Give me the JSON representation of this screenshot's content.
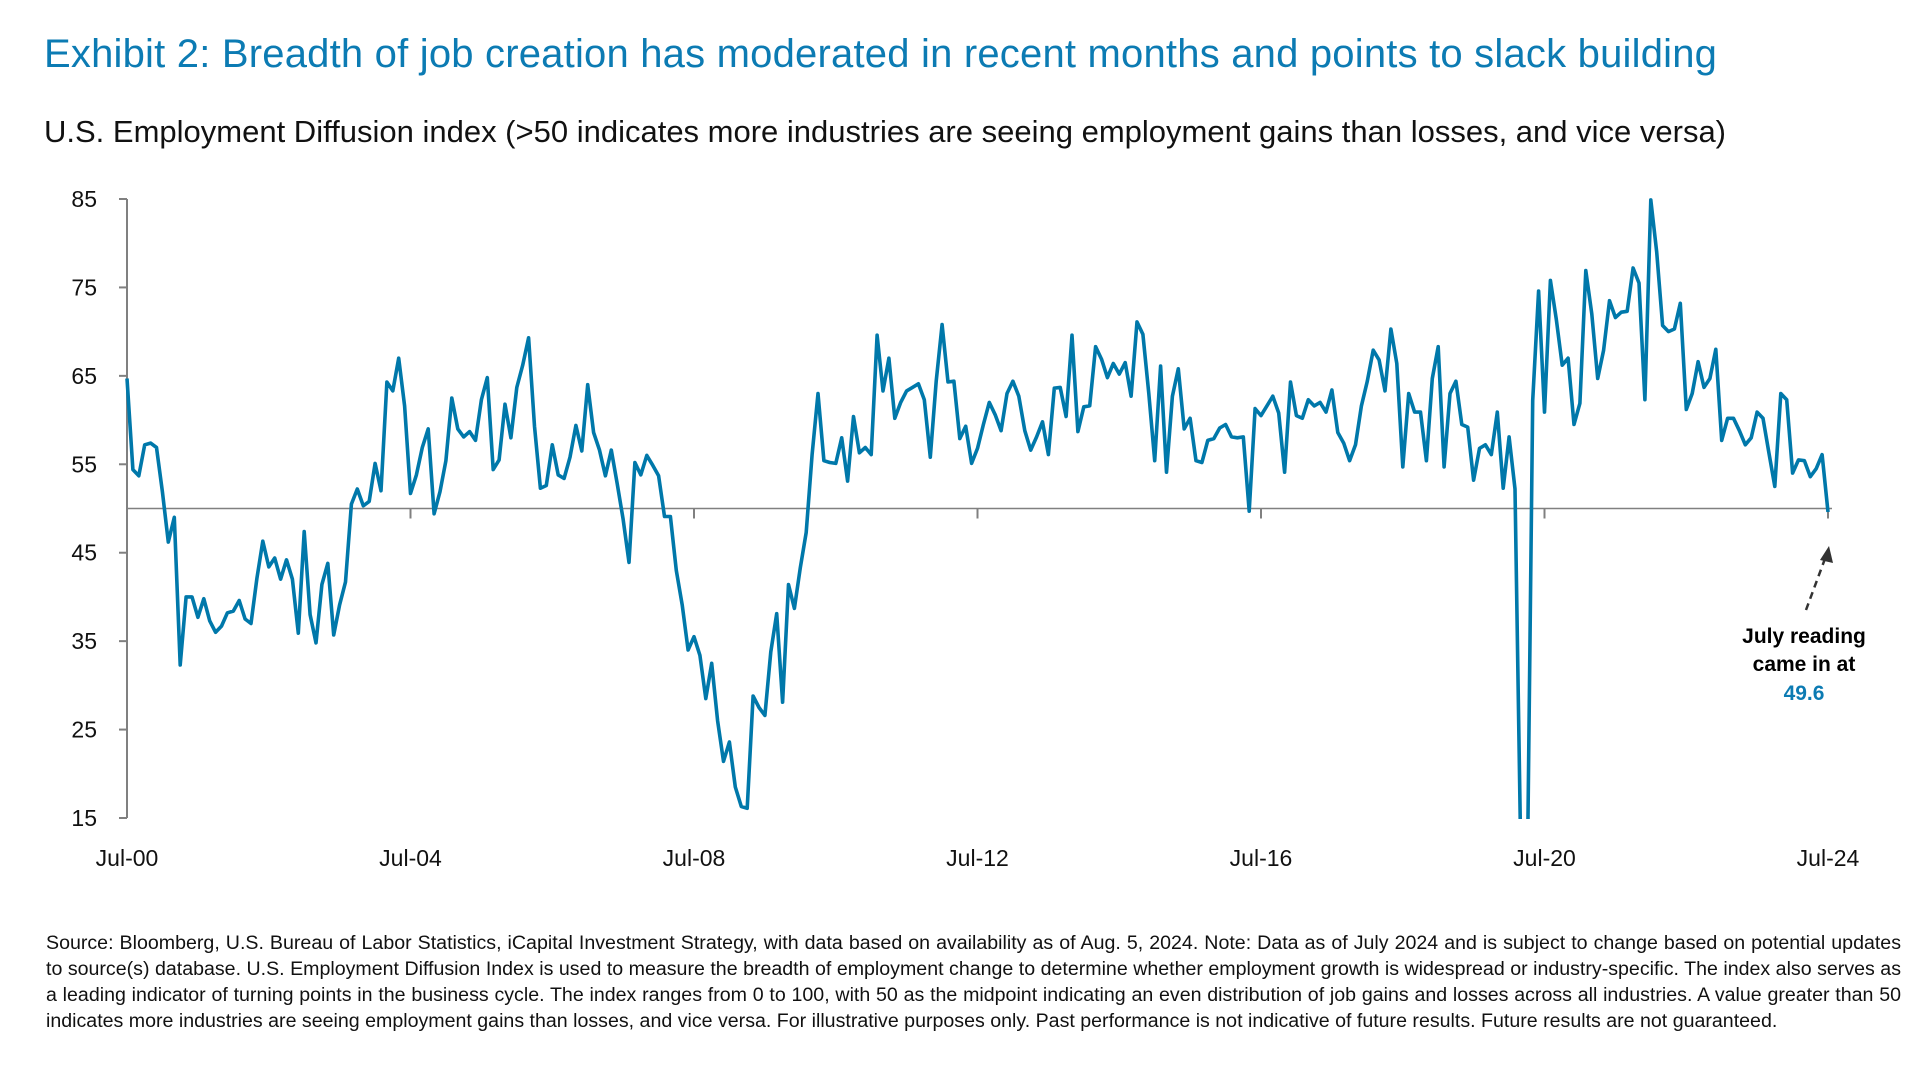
{
  "title": "Exhibit 2: Breadth of job creation has moderated in recent months and points to slack building",
  "subtitle": "U.S. Employment Diffusion index (>50 indicates more industries are seeing employment gains than losses, and vice versa)",
  "colors": {
    "title": "#0c7bb3",
    "line": "#0078aa",
    "axis": "#808080",
    "annotation_value": "#0c7bb3"
  },
  "chart_data": {
    "type": "line",
    "title": "",
    "xlabel": "",
    "ylabel": "",
    "ylim": [
      15,
      85
    ],
    "yticks": [
      15,
      25,
      35,
      45,
      55,
      65,
      75,
      85
    ],
    "xtick_labels": [
      "Jul-00",
      "Jul-04",
      "Jul-08",
      "Jul-12",
      "Jul-16",
      "Jul-20",
      "Jul-24"
    ],
    "frequency": "monthly",
    "start": "2000-07",
    "end": "2024-07",
    "reference_line": 50,
    "grid": false,
    "series": [
      {
        "values": [
          64.7,
          54.4,
          53.7,
          57.2,
          57.4,
          56.9,
          51.9,
          46.2,
          49,
          32.3,
          40,
          40,
          37.7,
          39.8,
          37.3,
          36,
          36.7,
          38.2,
          38.4,
          39.6,
          37.5,
          37,
          42.1,
          46.3,
          43.4,
          44.4,
          42,
          44.2,
          42,
          35.9,
          47.4,
          38,
          34.8,
          41.4,
          43.8,
          35.7,
          39.1,
          41.7,
          50.5,
          52.2,
          50.3,
          50.8,
          55.1,
          52,
          64.3,
          63.3,
          67,
          61.6,
          51.7,
          53.8,
          56.9,
          59,
          49.4,
          51.9,
          55.4,
          62.5,
          59,
          58.1,
          58.7,
          57.7,
          62.3,
          64.8,
          54.4,
          55.5,
          61.8,
          58,
          63.7,
          66.2,
          69.3,
          59.3,
          52.3,
          52.6,
          57.2,
          53.8,
          53.4,
          55.8,
          59.4,
          56.5,
          64,
          58.6,
          56.6,
          53.7,
          56.6,
          52.8,
          48.8,
          43.9,
          55.2,
          53.8,
          56,
          54.9,
          53.7,
          49.1,
          49.1,
          43,
          39.1,
          34,
          35.5,
          33.4,
          28.5,
          32.5,
          26,
          21.4,
          23.6,
          18.5,
          16.3,
          16.1,
          28.8,
          27.5,
          26.6,
          33.8,
          38.1,
          28.1,
          41.4,
          38.7,
          43.3,
          47.3,
          56.1,
          63,
          55.4,
          55.2,
          55.1,
          58,
          53.1,
          60.4,
          56.3,
          56.9,
          56.1,
          69.6,
          63.3,
          67,
          60.2,
          62,
          63.3,
          63.7,
          64.1,
          62.3,
          55.8,
          64.4,
          70.8,
          64.3,
          64.4,
          57.9,
          59.3,
          55.1,
          56.8,
          59.5,
          62,
          60.6,
          58.8,
          63,
          64.4,
          62.7,
          58.8,
          56.6,
          58.1,
          59.8,
          56.1,
          63.6,
          63.7,
          60.4,
          69.6,
          58.7,
          61.5,
          61.6,
          68.3,
          66.9,
          64.8,
          66.4,
          65.2,
          66.5,
          62.7,
          71.1,
          69.7,
          63,
          55.4,
          66.1,
          54.1,
          62.7,
          65.8,
          59,
          60.2,
          55.4,
          55.2,
          57.7,
          57.9,
          59.1,
          59.5,
          58.1,
          58,
          58.1,
          49.7,
          61.3,
          60.5,
          61.6,
          62.7,
          60.8,
          54.1,
          64.3,
          60.5,
          60.2,
          62.3,
          61.6,
          62,
          60.9,
          63.4,
          58.6,
          57.4,
          55.4,
          57.2,
          61.6,
          64.4,
          67.9,
          66.8,
          63.3,
          70.3,
          66.4,
          54.7,
          63,
          60.9,
          60.9,
          55.4,
          64.7,
          68.3,
          54.7,
          63,
          64.4,
          59.5,
          59.2,
          53.2,
          56.8,
          57.2,
          56.1,
          60.9,
          52.3,
          58.1,
          52.2,
          10,
          3,
          62.2,
          74.6,
          60.9,
          75.8,
          71.4,
          66.2,
          67,
          59.5,
          61.9,
          76.9,
          72,
          64.7,
          67.9,
          73.5,
          71.6,
          72.2,
          72.3,
          77.2,
          75.5,
          62.3,
          84.9,
          79,
          70.7,
          70,
          70.3,
          73.2,
          61.2,
          63,
          66.6,
          63.7,
          64.7,
          68,
          57.7,
          60.2,
          60.2,
          58.8,
          57.2,
          58,
          60.9,
          60.2,
          56.3,
          52.5,
          63,
          62.3,
          54,
          55.5,
          55.4,
          53.6,
          54.5,
          56.1,
          49.6
        ]
      }
    ],
    "annotation": {
      "lines": [
        "July reading",
        "came in at"
      ],
      "value": "49.6"
    }
  },
  "footnote": "Source: Bloomberg, U.S. Bureau of Labor Statistics, iCapital Investment Strategy, with data based on availability as of Aug. 5, 2024. Note: Data as of July 2024 and is subject to change based on potential updates to source(s) database. U.S. Employment Diffusion Index is used to measure the breadth of employment change to determine whether employment growth is widespread or industry-specific. The index also serves as a leading indicator of turning points in the business cycle. The index ranges from 0 to 100, with 50 as the midpoint indicating an even distribution of job gains and losses across all industries. A value greater than 50 indicates more industries are seeing employment gains than losses, and vice versa. For illustrative purposes only. Past performance is not indicative of future results. Future results are not guaranteed."
}
